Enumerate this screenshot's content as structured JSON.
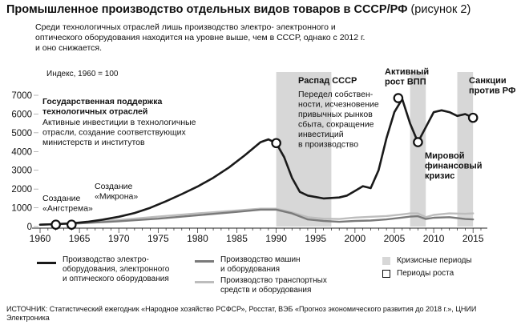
{
  "header": {
    "title_bold": "Промышленное производство отдельных видов товаров в СССР/РФ",
    "title_suffix": " (рисунок 2)",
    "subtitle": "Среди технологичных отраслей лишь производство электро- электронного и оптического оборудования находится на уровне выше, чем в СССР, однако с 2012 г. и оно снижается.",
    "index_note": "Индекс, 1960 = 100"
  },
  "chart_data": {
    "type": "line",
    "x_ticks": [
      1960,
      1965,
      1970,
      1975,
      1980,
      1985,
      1990,
      1995,
      2000,
      2005,
      2010,
      2015
    ],
    "y_ticks": [
      0,
      1000,
      2000,
      3000,
      4000,
      5000,
      6000,
      7000
    ],
    "xlim": [
      1960,
      2016
    ],
    "ylim": [
      0,
      7300
    ],
    "shaded_periods": [
      [
        1990,
        1997
      ],
      [
        2007,
        2009
      ],
      [
        2013,
        2015
      ]
    ],
    "series": [
      {
        "name": "Производство электро-оборудования, электронного и оптического оборудования",
        "color": "#1a1a1a",
        "x": [
          1960,
          1962,
          1964,
          1966,
          1968,
          1970,
          1972,
          1974,
          1976,
          1978,
          1980,
          1982,
          1984,
          1986,
          1988,
          1989,
          1990,
          1991,
          1992,
          1993,
          1994,
          1996,
          1998,
          1999,
          2000,
          2001,
          2002,
          2003,
          2004,
          2005,
          2006,
          2007,
          2008,
          2009,
          2010,
          2011,
          2012,
          2013,
          2014,
          2015
        ],
        "y": [
          100,
          130,
          170,
          250,
          370,
          520,
          720,
          1000,
          1350,
          1730,
          2130,
          2600,
          3150,
          3800,
          4500,
          4650,
          4450,
          3700,
          2600,
          1850,
          1650,
          1500,
          1550,
          1650,
          1900,
          2150,
          2050,
          3000,
          4700,
          6100,
          6800,
          5500,
          4500,
          5300,
          6100,
          6200,
          6100,
          5900,
          6000,
          5800
        ]
      },
      {
        "name": "Производство машин и оборудования",
        "color": "#7a7a7a",
        "x": [
          1960,
          1965,
          1970,
          1975,
          1980,
          1985,
          1988,
          1990,
          1992,
          1994,
          1996,
          1998,
          2000,
          2002,
          2004,
          2006,
          2007,
          2008,
          2009,
          2010,
          2012,
          2014,
          2015
        ],
        "y": [
          100,
          170,
          280,
          420,
          600,
          780,
          900,
          900,
          700,
          380,
          300,
          250,
          300,
          320,
          380,
          480,
          530,
          550,
          400,
          470,
          500,
          400,
          380
        ]
      },
      {
        "name": "Производство транспортных средств и оборудования",
        "color": "#bdbdbd",
        "x": [
          1960,
          1965,
          1970,
          1975,
          1980,
          1985,
          1988,
          1990,
          1992,
          1994,
          1996,
          1998,
          2000,
          2002,
          2004,
          2006,
          2007,
          2008,
          2009,
          2010,
          2012,
          2014,
          2015
        ],
        "y": [
          100,
          200,
          350,
          530,
          700,
          860,
          950,
          950,
          750,
          500,
          420,
          400,
          480,
          520,
          560,
          650,
          700,
          700,
          500,
          620,
          700,
          680,
          700
        ]
      }
    ],
    "markers": [
      {
        "x": 1962,
        "y": 100
      },
      {
        "x": 1964,
        "y": 100
      },
      {
        "x": 1990,
        "y": 4450
      },
      {
        "x": 2005.5,
        "y": 6850
      },
      {
        "x": 2008,
        "y": 4500
      },
      {
        "x": 2015,
        "y": 5800
      }
    ],
    "annotations": [
      {
        "lines": [
          "Государственная поддержка",
          "технологичных отраслей"
        ],
        "bold": true
      },
      {
        "lines": [
          "Активные инвестиции в технологичные",
          "отрасли, создание соответствующих",
          "министерств и институтов"
        ],
        "bold": false
      },
      {
        "lines": [
          "Создание",
          "«Ангстрема»"
        ],
        "bold": false
      },
      {
        "lines": [
          "Создание",
          "«Микрона»"
        ],
        "bold": false
      },
      {
        "lines": [
          "Распад СССР"
        ],
        "bold": true
      },
      {
        "lines": [
          "Передел собствен-",
          "ности, исчезновение",
          "привычных рынков",
          "сбыта, сокращение",
          "инвестиций",
          "в производство"
        ],
        "bold": false
      },
      {
        "lines": [
          "Активный",
          "рост ВПП"
        ],
        "bold": true
      },
      {
        "lines": [
          "Мировой",
          "финансовый",
          "кризис"
        ],
        "bold": true
      },
      {
        "lines": [
          "Санкции",
          "против РФ"
        ],
        "bold": true
      }
    ]
  },
  "legend": {
    "series1": "Производство электро-\nоборудования, электронного\nи оптического оборудования",
    "series2": "Производство машин\nи оборудования",
    "series3": "Производство транспортных\nсредств и оборудования",
    "crisis": "Кризисные периоды",
    "growth": "Периоды роста"
  },
  "source": "ИСТОЧНИК: Статистический ежегодник «Народное хозяйство РСФСР», Росстат, ВЭБ «Прогноз экономического развития до 2018 г.», ЦНИИ Электроника"
}
